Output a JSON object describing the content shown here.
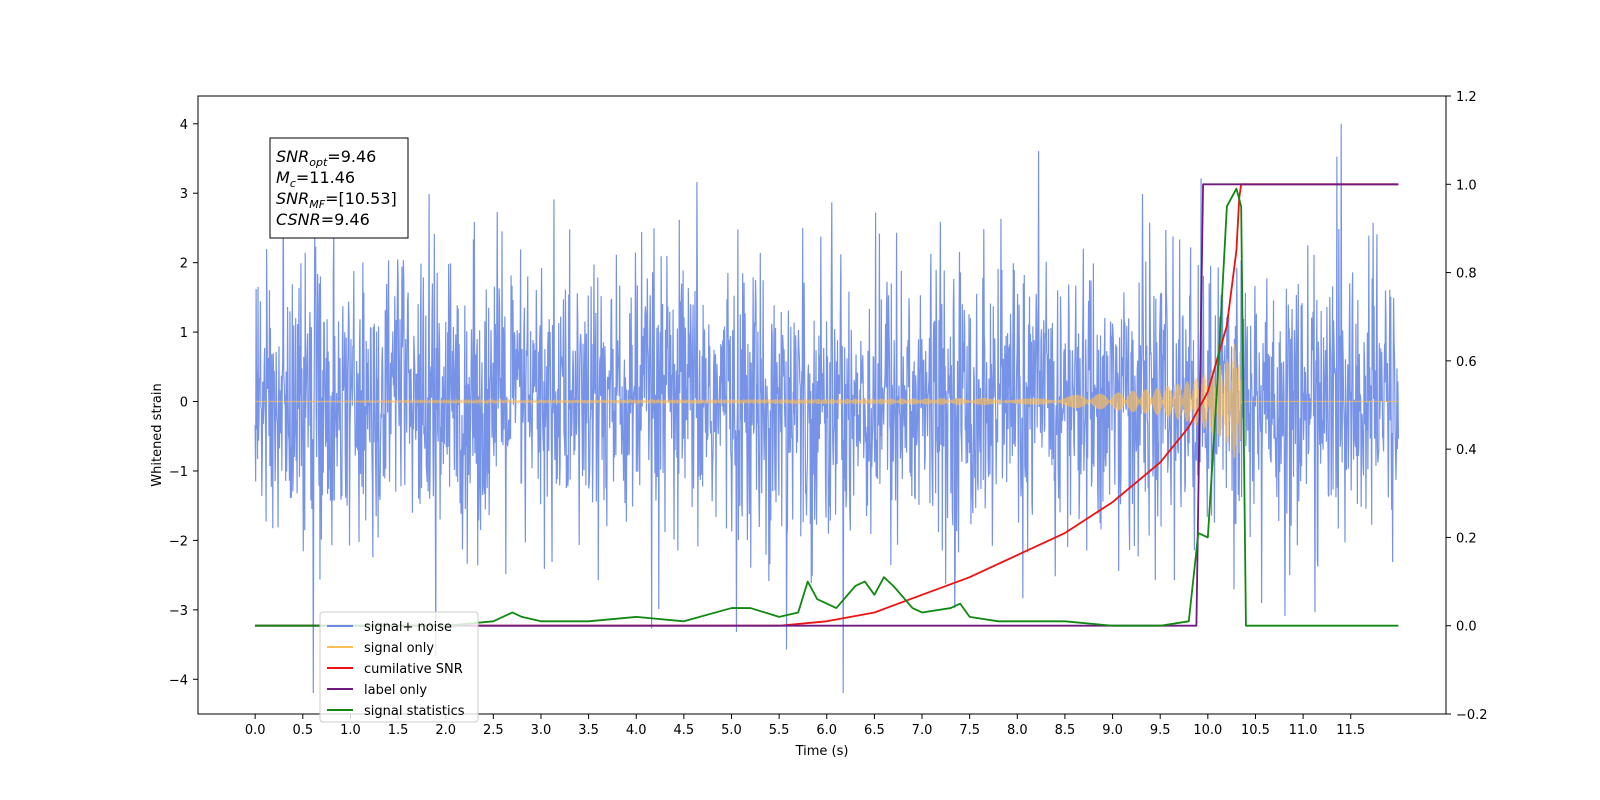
{
  "chart_data": {
    "type": "line",
    "title": "",
    "xlabel": "Time (s)",
    "ylabel": "Whitened strain",
    "y2label": "",
    "xlim": [
      -0.6,
      12.5
    ],
    "ylim": [
      -4.5,
      4.4
    ],
    "y2lim": [
      -0.2,
      1.2
    ],
    "x_ticks": [
      "0.0",
      "0.5",
      "1.0",
      "1.5",
      "2.0",
      "2.5",
      "3.0",
      "3.5",
      "4.0",
      "4.5",
      "5.0",
      "5.5",
      "6.0",
      "6.5",
      "7.0",
      "7.5",
      "8.0",
      "8.5",
      "9.0",
      "9.5",
      "10.0",
      "10.5",
      "11.0",
      "11.5"
    ],
    "y_ticks": [
      "4",
      "3",
      "2",
      "1",
      "0",
      "−1",
      "−2",
      "−3",
      "−4"
    ],
    "y2_ticks": [
      "1.2",
      "1.0",
      "0.8",
      "0.6",
      "0.4",
      "0.2",
      "0.0",
      "−0.2"
    ],
    "grid": false,
    "legend_position": "lower-left",
    "annotation": {
      "lines": [
        {
          "var": "SNR",
          "sub": "opt",
          "value": "=9.46"
        },
        {
          "var": "M",
          "sub": "c",
          "value": "=11.46"
        },
        {
          "var": "SNR",
          "sub": "MF",
          "value": "=[10.53]"
        },
        {
          "var": "CSNR",
          "sub": "",
          "value": "=9.46"
        }
      ]
    },
    "series": [
      {
        "name": "signal+ noise",
        "color": "#6a8ae6",
        "axis": "left",
        "kind": "noise",
        "x_range": [
          0.0,
          12.0
        ],
        "std": 1.0
      },
      {
        "name": "signal only",
        "color": "#ffbe55",
        "axis": "left",
        "kind": "chirp",
        "x": [
          0.0,
          8.0,
          9.0,
          9.5,
          9.8,
          10.0,
          10.2,
          10.3,
          10.33,
          10.35,
          12.0
        ],
        "amplitude": [
          0.0,
          0.05,
          0.12,
          0.2,
          0.3,
          0.42,
          0.6,
          0.9,
          1.1,
          0.0,
          0.0
        ]
      },
      {
        "name": "cumilative SNR",
        "color": "#ee1111",
        "axis": "right",
        "x": [
          0.0,
          5.5,
          6.0,
          6.5,
          7.0,
          7.5,
          8.0,
          8.5,
          9.0,
          9.5,
          9.8,
          10.0,
          10.2,
          10.3,
          10.33,
          10.35,
          12.0
        ],
        "y": [
          0.0,
          0.0,
          0.01,
          0.03,
          0.07,
          0.11,
          0.16,
          0.21,
          0.28,
          0.37,
          0.45,
          0.53,
          0.68,
          0.85,
          0.97,
          1.0,
          1.0
        ]
      },
      {
        "name": "label only",
        "color": "#6f1a80",
        "axis": "right",
        "x": [
          0.0,
          9.88,
          9.95,
          10.38,
          12.0
        ],
        "y": [
          0.0,
          0.0,
          1.0,
          1.0,
          1.0
        ]
      },
      {
        "name": "signal statistics",
        "color": "#118811",
        "axis": "right",
        "x": [
          0.0,
          2.0,
          2.5,
          2.7,
          2.8,
          3.0,
          3.5,
          4.0,
          4.5,
          5.0,
          5.2,
          5.5,
          5.7,
          5.8,
          5.9,
          6.1,
          6.3,
          6.4,
          6.5,
          6.6,
          6.7,
          6.9,
          7.0,
          7.3,
          7.4,
          7.5,
          7.8,
          8.0,
          8.5,
          9.0,
          9.5,
          9.8,
          9.9,
          10.0,
          10.1,
          10.2,
          10.3,
          10.35,
          10.4,
          12.0
        ],
        "y": [
          0.0,
          0.0,
          0.01,
          0.03,
          0.02,
          0.01,
          0.01,
          0.02,
          0.01,
          0.04,
          0.04,
          0.02,
          0.03,
          0.1,
          0.06,
          0.04,
          0.09,
          0.1,
          0.07,
          0.11,
          0.09,
          0.04,
          0.03,
          0.04,
          0.05,
          0.02,
          0.01,
          0.01,
          0.01,
          0.0,
          0.0,
          0.01,
          0.21,
          0.2,
          0.55,
          0.95,
          0.99,
          0.95,
          0.0,
          0.0
        ]
      }
    ]
  }
}
